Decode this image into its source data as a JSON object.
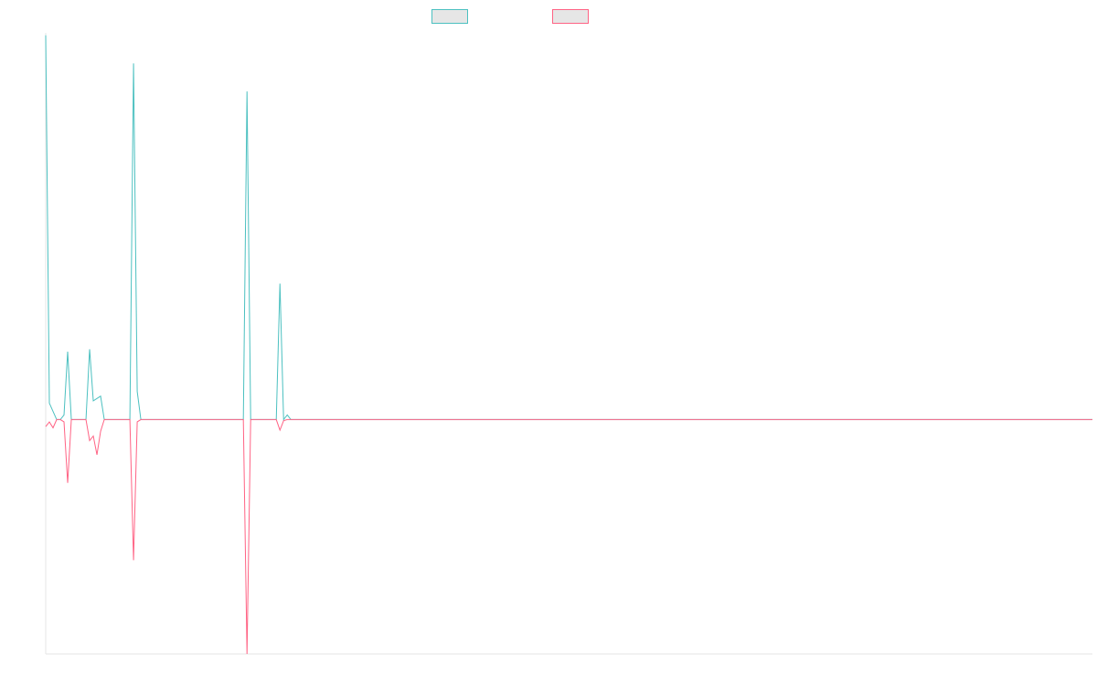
{
  "chart_data": {
    "type": "line",
    "title": "",
    "xlabel": "",
    "ylabel": "",
    "grid": false,
    "legend_position": "top-center",
    "ylim": [
      -1.0,
      1.65
    ],
    "xlim": [
      0,
      286
    ],
    "colors": {
      "background": "#ffffff",
      "axis": "#e6e6e6",
      "legend_fill": "#e6e6e6"
    },
    "series": [
      {
        "color": "#4bc0c0",
        "points": [
          [
            0,
            1.64
          ],
          [
            1,
            0.07
          ],
          [
            2,
            0.035
          ],
          [
            3,
            0.0
          ],
          [
            4,
            0.0
          ],
          [
            5,
            0.02
          ],
          [
            6,
            0.29
          ],
          [
            7,
            0.0
          ],
          [
            8,
            0.0
          ],
          [
            9,
            0.0
          ],
          [
            10,
            0.0
          ],
          [
            11,
            0.0
          ],
          [
            12,
            0.3
          ],
          [
            13,
            0.08
          ],
          [
            14,
            0.09
          ],
          [
            15,
            0.1
          ],
          [
            16,
            0.0
          ],
          [
            17,
            0.0
          ],
          [
            18,
            0.0
          ],
          [
            19,
            0.0
          ],
          [
            20,
            0.0
          ],
          [
            21,
            0.0
          ],
          [
            22,
            0.0
          ],
          [
            23,
            0.0
          ],
          [
            24,
            1.52
          ],
          [
            25,
            0.12
          ],
          [
            26,
            0.0
          ],
          [
            27,
            0.0
          ],
          [
            53,
            0.0
          ],
          [
            54,
            0.0
          ],
          [
            55,
            1.4
          ],
          [
            56,
            0.0
          ],
          [
            57,
            0.0
          ],
          [
            63,
            0.0
          ],
          [
            64,
            0.58
          ],
          [
            65,
            0.0
          ],
          [
            66,
            0.02
          ],
          [
            67,
            0.0
          ],
          [
            286,
            0.0
          ]
        ]
      },
      {
        "color": "#ff6384",
        "points": [
          [
            0,
            -0.03
          ],
          [
            1,
            -0.01
          ],
          [
            2,
            -0.035
          ],
          [
            3,
            0.0
          ],
          [
            4,
            0.0
          ],
          [
            5,
            -0.01
          ],
          [
            6,
            -0.27
          ],
          [
            7,
            0.0
          ],
          [
            8,
            0.0
          ],
          [
            9,
            0.0
          ],
          [
            10,
            0.0
          ],
          [
            11,
            0.0
          ],
          [
            12,
            -0.09
          ],
          [
            13,
            -0.07
          ],
          [
            14,
            -0.15
          ],
          [
            15,
            -0.05
          ],
          [
            16,
            0.0
          ],
          [
            17,
            0.0
          ],
          [
            18,
            0.0
          ],
          [
            19,
            0.0
          ],
          [
            20,
            0.0
          ],
          [
            21,
            0.0
          ],
          [
            22,
            0.0
          ],
          [
            23,
            0.0
          ],
          [
            24,
            -0.6
          ],
          [
            25,
            -0.01
          ],
          [
            26,
            0.0
          ],
          [
            27,
            0.0
          ],
          [
            53,
            0.0
          ],
          [
            54,
            0.0
          ],
          [
            55,
            -1.0
          ],
          [
            56,
            0.0
          ],
          [
            57,
            0.0
          ],
          [
            63,
            0.0
          ],
          [
            64,
            -0.045
          ],
          [
            65,
            -0.005
          ],
          [
            66,
            0.0
          ],
          [
            67,
            0.0
          ],
          [
            286,
            0.0
          ]
        ]
      }
    ]
  }
}
